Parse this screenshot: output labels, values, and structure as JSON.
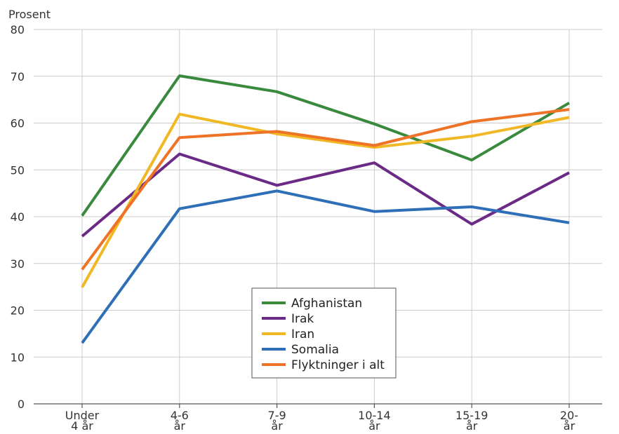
{
  "chart_data": {
    "type": "line",
    "title": "",
    "ylabel": "Prosent",
    "xlabel": "",
    "ylim": [
      0,
      80
    ],
    "yticks": [
      0,
      10,
      20,
      30,
      40,
      50,
      60,
      70,
      80
    ],
    "grid": true,
    "legend_position": "bottom-center",
    "categories": [
      [
        "Under",
        "4 år"
      ],
      [
        "4-6",
        "år"
      ],
      [
        "7-9",
        "år"
      ],
      [
        "10-14",
        "år"
      ],
      [
        "15-19",
        "år"
      ],
      [
        "20-",
        "år"
      ]
    ],
    "series": [
      {
        "name": "Afghanistan",
        "color": "#3a8a3e",
        "values": [
          40.2,
          70.1,
          66.7,
          59.8,
          52.1,
          64.3
        ]
      },
      {
        "name": "Irak",
        "color": "#6b2a85",
        "values": [
          35.8,
          53.4,
          46.7,
          51.5,
          38.4,
          49.4
        ]
      },
      {
        "name": "Iran",
        "color": "#f0b824",
        "values": [
          24.9,
          61.9,
          57.7,
          54.8,
          57.2,
          61.2
        ]
      },
      {
        "name": "Somalia",
        "color": "#2e6fb7",
        "values": [
          13.0,
          41.7,
          45.5,
          41.1,
          42.1,
          38.7
        ]
      },
      {
        "name": "Flyktninger i alt",
        "color": "#ee7326",
        "values": [
          28.7,
          56.9,
          58.2,
          55.2,
          60.3,
          62.9
        ]
      }
    ]
  }
}
